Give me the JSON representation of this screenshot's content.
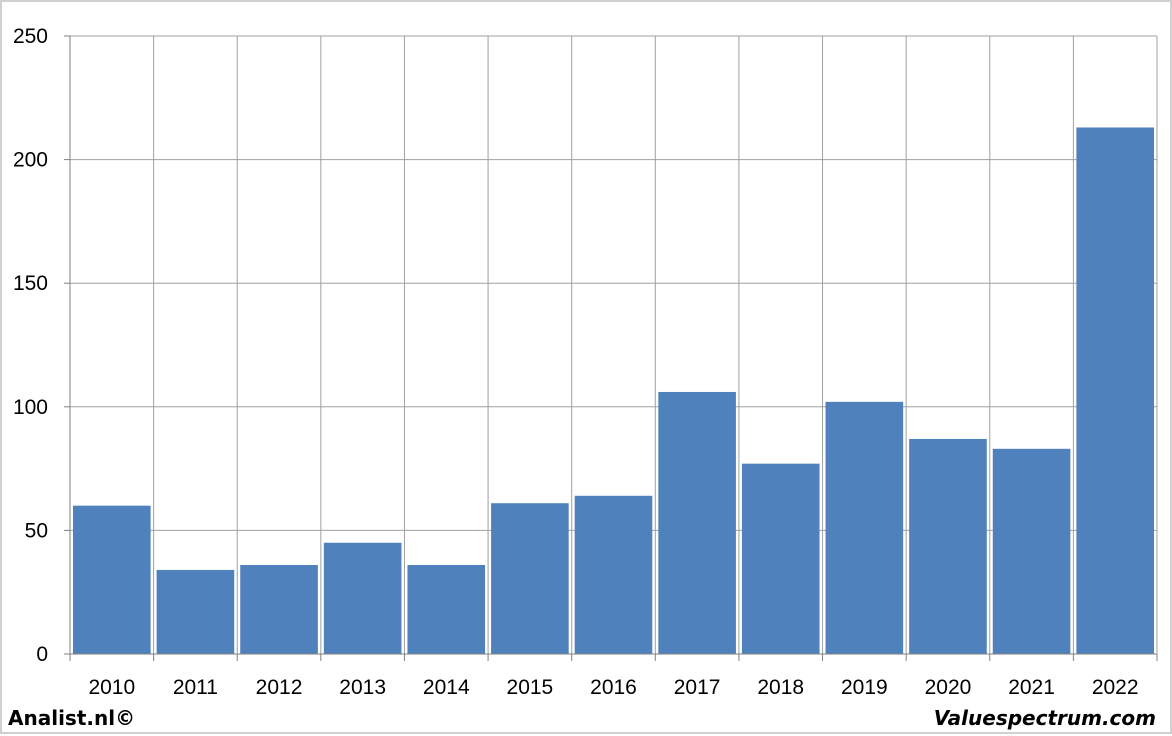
{
  "chart_data": {
    "type": "bar",
    "categories": [
      "2010",
      "2011",
      "2012",
      "2013",
      "2014",
      "2015",
      "2016",
      "2017",
      "2018",
      "2019",
      "2020",
      "2021",
      "2022"
    ],
    "values": [
      60,
      34,
      36,
      45,
      36,
      61,
      64,
      106,
      77,
      102,
      87,
      83,
      213
    ],
    "ylim": [
      0,
      250
    ],
    "yticks": [
      0,
      50,
      100,
      150,
      200,
      250
    ],
    "grid": true,
    "bar_color": "#4f81bd",
    "grid_color": "#a0a0a0"
  },
  "footer": {
    "left": "Analist.nl©",
    "right": "Valuespectrum.com"
  }
}
